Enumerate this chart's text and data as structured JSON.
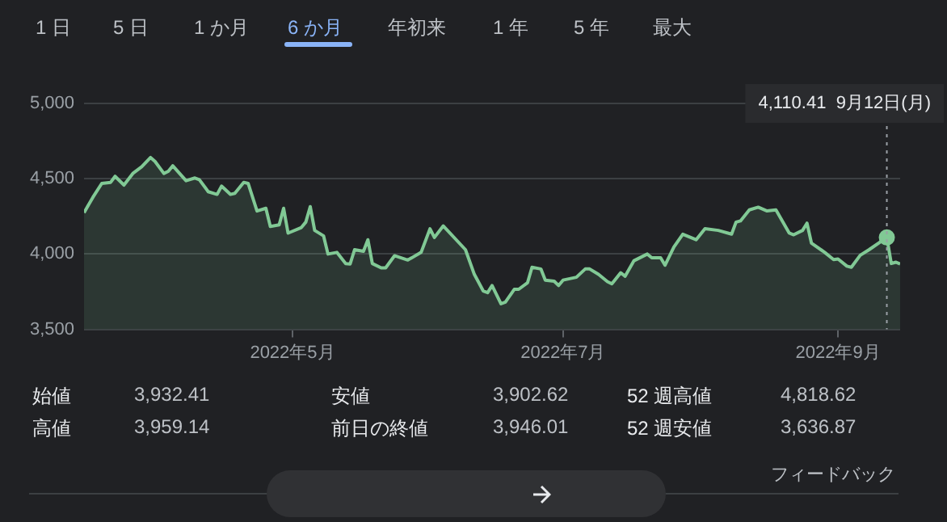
{
  "chart_data": {
    "type": "area",
    "x": [
      "2022-03-15",
      "2022-03-17",
      "2022-03-19",
      "2022-03-21",
      "2022-03-22",
      "2022-03-24",
      "2022-03-26",
      "2022-03-28",
      "2022-03-30",
      "2022-03-31",
      "2022-04-02",
      "2022-04-03",
      "2022-04-04",
      "2022-04-07",
      "2022-04-09",
      "2022-04-10",
      "2022-04-12",
      "2022-04-14",
      "2022-04-15",
      "2022-04-17",
      "2022-04-18",
      "2022-04-20",
      "2022-04-21",
      "2022-04-23",
      "2022-04-25",
      "2022-04-26",
      "2022-04-28",
      "2022-04-29",
      "2022-04-30",
      "2022-05-03",
      "2022-05-04",
      "2022-05-05",
      "2022-05-06",
      "2022-05-08",
      "2022-05-09",
      "2022-05-11",
      "2022-05-13",
      "2022-05-14",
      "2022-05-15",
      "2022-05-17",
      "2022-05-18",
      "2022-05-19",
      "2022-05-21",
      "2022-05-22",
      "2022-05-24",
      "2022-05-27",
      "2022-05-30",
      "2022-06-01",
      "2022-06-02",
      "2022-06-04",
      "2022-06-09",
      "2022-06-11",
      "2022-06-13",
      "2022-06-14",
      "2022-06-15",
      "2022-06-17",
      "2022-06-18",
      "2022-06-20",
      "2022-06-21",
      "2022-06-23",
      "2022-06-24",
      "2022-06-26",
      "2022-06-27",
      "2022-06-29",
      "2022-06-30",
      "2022-07-01",
      "2022-07-04",
      "2022-07-06",
      "2022-07-07",
      "2022-07-09",
      "2022-07-11",
      "2022-07-12",
      "2022-07-14",
      "2022-07-15",
      "2022-07-17",
      "2022-07-20",
      "2022-07-21",
      "2022-07-23",
      "2022-07-24",
      "2022-07-26",
      "2022-07-28",
      "2022-07-31",
      "2022-08-02",
      "2022-08-05",
      "2022-08-08",
      "2022-08-09",
      "2022-08-10",
      "2022-08-12",
      "2022-08-14",
      "2022-08-16",
      "2022-08-18",
      "2022-08-21",
      "2022-08-22",
      "2022-08-24",
      "2022-08-25",
      "2022-08-26",
      "2022-08-29",
      "2022-08-31",
      "2022-09-01",
      "2022-09-03",
      "2022-09-04",
      "2022-09-06",
      "2022-09-08",
      "2022-09-12",
      "2022-09-13",
      "2022-09-14",
      "2022-09-15"
    ],
    "series": [
      {
        "color": "#81c995",
        "values": [
          4275,
          4377,
          4469,
          4476,
          4516,
          4458,
          4535,
          4579,
          4641,
          4615,
          4535,
          4549,
          4586,
          4487,
          4505,
          4494,
          4414,
          4396,
          4451,
          4396,
          4403,
          4476,
          4469,
          4286,
          4304,
          4183,
          4194,
          4304,
          4139,
          4176,
          4212,
          4315,
          4157,
          4121,
          4000,
          4011,
          3937,
          3934,
          4029,
          4018,
          4095,
          3937,
          3908,
          3908,
          3989,
          3960,
          4011,
          4168,
          4110,
          4187,
          4029,
          3865,
          3755,
          3744,
          3791,
          3670,
          3681,
          3766,
          3766,
          3810,
          3912,
          3901,
          3827,
          3820,
          3791,
          3827,
          3846,
          3901,
          3901,
          3865,
          3817,
          3802,
          3876,
          3853,
          3956,
          4000,
          3975,
          3975,
          3926,
          4047,
          4132,
          4095,
          4168,
          4157,
          4132,
          4212,
          4220,
          4293,
          4311,
          4286,
          4293,
          4139,
          4128,
          4157,
          4205,
          4073,
          4011,
          3963,
          3967,
          3920,
          3912,
          3992,
          4029,
          4110.41,
          3937,
          3946,
          3935
        ]
      },
      {
        "type": "scatter",
        "marker": "circle",
        "color": "#81c995",
        "x": [
          "2022-09-12"
        ],
        "values": [
          4110.41
        ]
      }
    ],
    "xlim": [
      "2022-03-15",
      "2022-09-15"
    ],
    "xticks": [
      {
        "value": "2022-05-01",
        "label": "2022年5月"
      },
      {
        "value": "2022-07-01",
        "label": "2022年7月"
      },
      {
        "value": "2022-09-01",
        "label": "2022年9月"
      }
    ],
    "ylim": [
      3500,
      5000
    ],
    "yticks": [
      {
        "value": 3500,
        "label": "3,500"
      },
      {
        "value": 4000,
        "label": "4,000"
      },
      {
        "value": 4500,
        "label": "4,500"
      },
      {
        "value": 5000,
        "label": "5,000"
      }
    ],
    "grid": "y",
    "legend": false,
    "marker": "none",
    "line_style": "solid",
    "ref_lines": [
      {
        "axis": "x",
        "value": "2022-09-12",
        "line_style": "dotted",
        "color": "#9aa0a6"
      }
    ],
    "annotations": [
      "4,110.41  9月12日(月)",
      "1 日",
      "5 日",
      "1 か月",
      "6 か月",
      "年初来",
      "1 年",
      "5 年",
      "最大",
      "始値",
      "3,932.41",
      "安値",
      "3,902.62",
      "52 週高値",
      "4,818.62",
      "高値",
      "3,959.14",
      "前日の終値",
      "3,946.01",
      "52 週安値",
      "3,636.87",
      "フィードバック"
    ]
  }
}
